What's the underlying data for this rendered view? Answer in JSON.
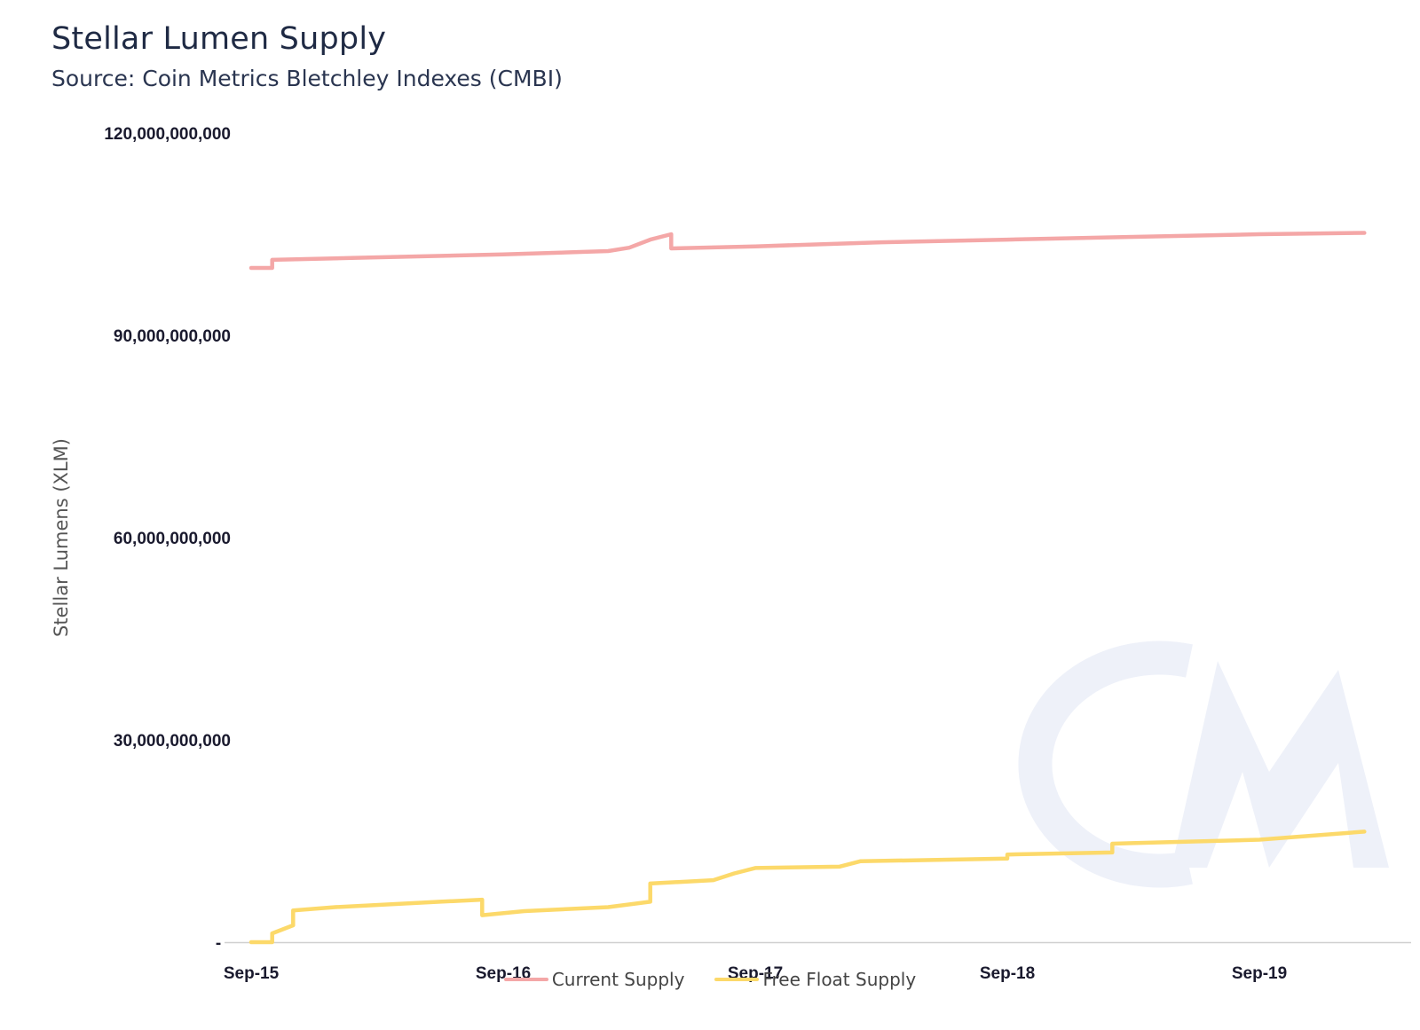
{
  "chart_data": {
    "type": "line",
    "title": "Stellar Lumen Supply",
    "subtitle": "Source: Coin Metrics Bletchley Indexes (CMBI)",
    "ylabel": "Stellar Lumens (XLM)",
    "xlabel": "",
    "x_range": [
      "2015-09",
      "2020-02"
    ],
    "ylim": [
      0,
      120000000000
    ],
    "y_ticks": [
      {
        "value": 0,
        "label": "-"
      },
      {
        "value": 30000000000,
        "label": "30,000,000,000"
      },
      {
        "value": 60000000000,
        "label": "60,000,000,000"
      },
      {
        "value": 90000000000,
        "label": "90,000,000,000"
      },
      {
        "value": 120000000000,
        "label": "120,000,000,000"
      }
    ],
    "x_ticks": [
      {
        "value": "2015-09",
        "label": "Sep-15"
      },
      {
        "value": "2016-09",
        "label": "Sep-16"
      },
      {
        "value": "2017-09",
        "label": "Sep-17"
      },
      {
        "value": "2018-09",
        "label": "Sep-18"
      },
      {
        "value": "2019-09",
        "label": "Sep-19"
      }
    ],
    "legend_position": "bottom-center",
    "grid": false,
    "watermark": "CM",
    "series": [
      {
        "name": "Current Supply",
        "color": "#f4a7a7",
        "points": [
          [
            "2015-09",
            100000000000
          ],
          [
            "2015-10",
            100000000000
          ],
          [
            "2015-10",
            101200000000
          ],
          [
            "2016-02",
            101500000000
          ],
          [
            "2016-09",
            102000000000
          ],
          [
            "2017-02",
            102500000000
          ],
          [
            "2017-03",
            103000000000
          ],
          [
            "2017-04",
            104200000000
          ],
          [
            "2017-05",
            105000000000
          ],
          [
            "2017-05",
            102900000000
          ],
          [
            "2017-09",
            103200000000
          ],
          [
            "2018-03",
            103800000000
          ],
          [
            "2018-09",
            104200000000
          ],
          [
            "2019-03",
            104600000000
          ],
          [
            "2019-09",
            105000000000
          ],
          [
            "2020-02",
            105200000000
          ]
        ]
      },
      {
        "name": "Free Float Supply",
        "color": "#fcd96a",
        "points": [
          [
            "2015-09",
            0
          ],
          [
            "2015-10",
            0
          ],
          [
            "2015-10",
            1300000000
          ],
          [
            "2015-11",
            2500000000
          ],
          [
            "2015-11",
            4700000000
          ],
          [
            "2016-01",
            5200000000
          ],
          [
            "2016-06",
            6000000000
          ],
          [
            "2016-08",
            6300000000
          ],
          [
            "2016-08",
            4000000000
          ],
          [
            "2016-10",
            4600000000
          ],
          [
            "2017-02",
            5200000000
          ],
          [
            "2017-04",
            6000000000
          ],
          [
            "2017-04",
            8700000000
          ],
          [
            "2017-07",
            9200000000
          ],
          [
            "2017-08",
            10200000000
          ],
          [
            "2017-09",
            11000000000
          ],
          [
            "2018-01",
            11200000000
          ],
          [
            "2018-02",
            12000000000
          ],
          [
            "2018-09",
            12400000000
          ],
          [
            "2018-09",
            13000000000
          ],
          [
            "2019-02",
            13300000000
          ],
          [
            "2019-02",
            14600000000
          ],
          [
            "2019-09",
            15200000000
          ],
          [
            "2020-02",
            16400000000
          ]
        ]
      }
    ]
  }
}
